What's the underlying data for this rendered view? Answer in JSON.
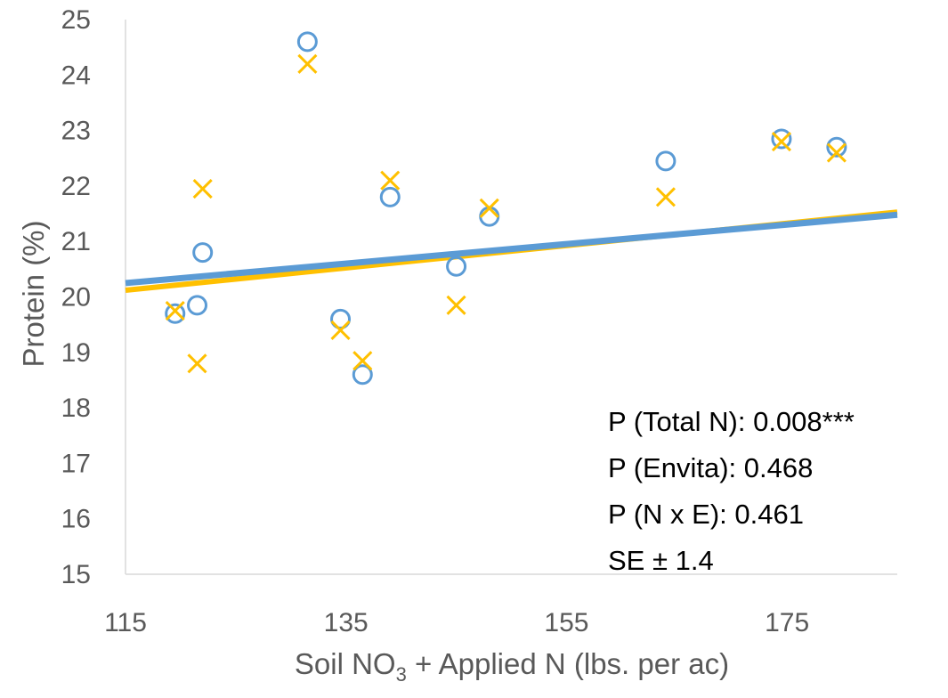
{
  "chart_data": {
    "type": "scatter",
    "title": "",
    "xlabel": "Soil NO",
    "xlabel_sub": "3",
    "xlabel_rest": " + Applied N (lbs. per ac)",
    "ylabel": "Protein (%)",
    "xlim": [
      115,
      185
    ],
    "ylim": [
      15,
      25
    ],
    "xticks": [
      115,
      135,
      155,
      175
    ],
    "yticks": [
      15,
      16,
      17,
      18,
      19,
      20,
      21,
      22,
      23,
      24,
      25
    ],
    "grid": false,
    "legend": "none",
    "series": [
      {
        "marker": "circle",
        "color": "#5B9BD5",
        "points": [
          [
            119.5,
            19.7
          ],
          [
            121.5,
            19.85
          ],
          [
            122.0,
            20.8
          ],
          [
            131.5,
            24.6
          ],
          [
            134.5,
            19.6
          ],
          [
            136.5,
            18.6
          ],
          [
            139.0,
            21.8
          ],
          [
            145.0,
            20.55
          ],
          [
            148.0,
            21.45
          ],
          [
            164.0,
            22.45
          ],
          [
            174.5,
            22.85
          ],
          [
            179.5,
            22.7
          ]
        ],
        "trend": [
          [
            115,
            20.25
          ],
          [
            185,
            21.48
          ]
        ]
      },
      {
        "marker": "x",
        "color": "#FFC000",
        "points": [
          [
            119.5,
            19.75
          ],
          [
            121.5,
            18.8
          ],
          [
            122.0,
            21.95
          ],
          [
            131.5,
            24.2
          ],
          [
            134.5,
            19.4
          ],
          [
            136.5,
            18.85
          ],
          [
            139.0,
            22.1
          ],
          [
            145.0,
            19.85
          ],
          [
            148.0,
            21.6
          ],
          [
            164.0,
            21.8
          ],
          [
            174.5,
            22.8
          ],
          [
            179.5,
            22.6
          ]
        ],
        "trend": [
          [
            115,
            20.12
          ],
          [
            185,
            21.53
          ]
        ]
      }
    ],
    "annotations": [
      "P (Total N): 0.008***",
      "P (Envita): 0.468",
      "P (N x E): 0.461",
      "SE ± 1.4"
    ]
  }
}
